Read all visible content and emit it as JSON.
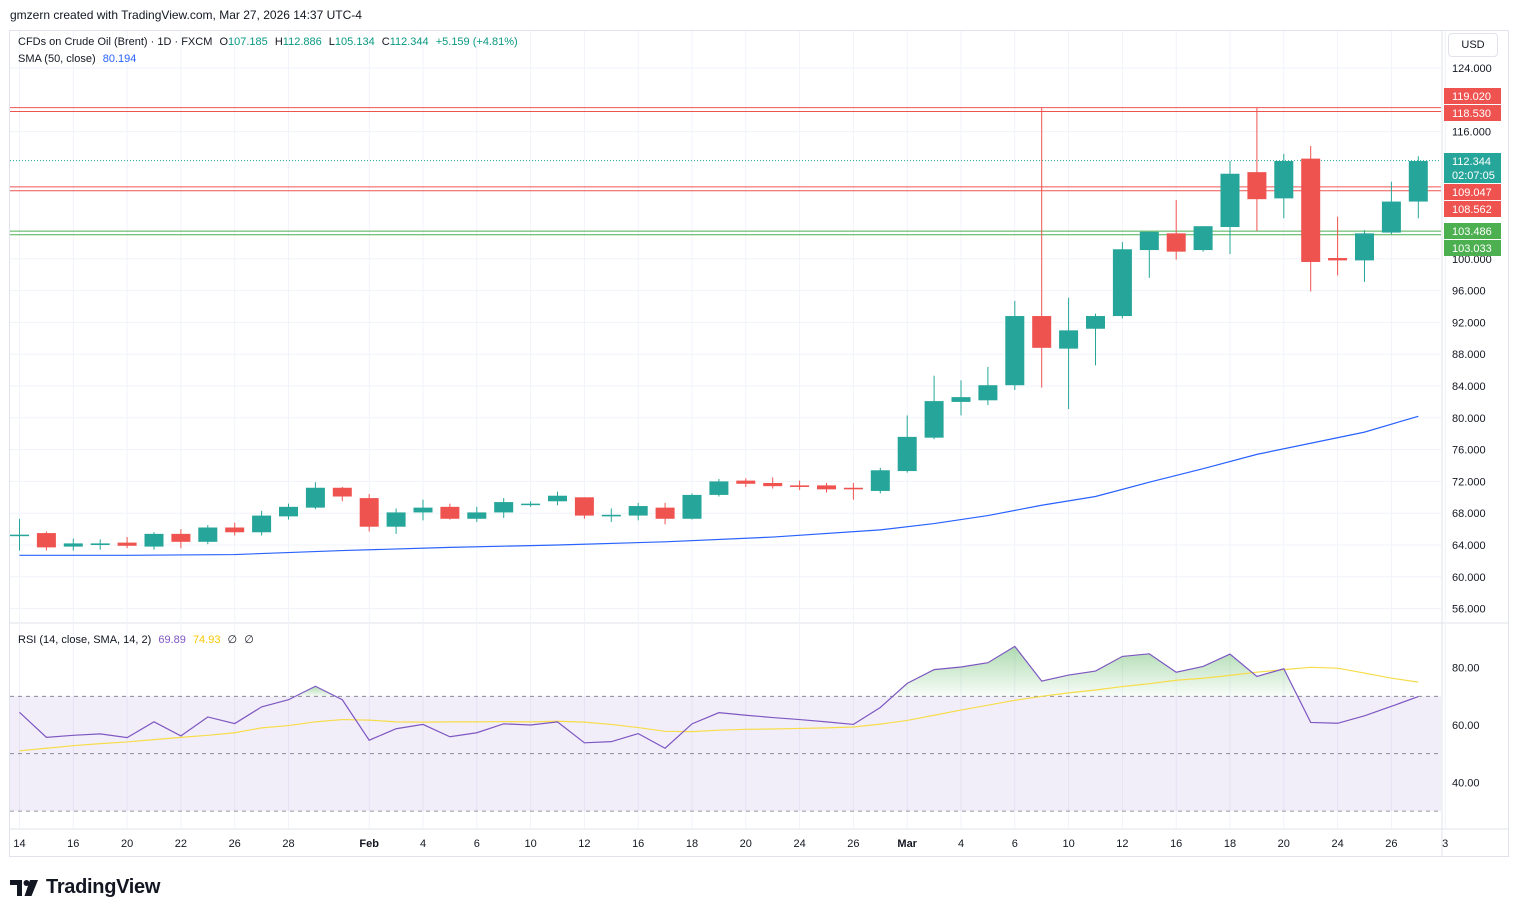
{
  "header": {
    "attribution": "gmzern created with TradingView.com, Mar 27, 2026 14:37 UTC-4"
  },
  "legend": {
    "symbol": "CFDs on Crude Oil (Brent) · 1D · FXCM",
    "o_label": "O",
    "o_value": "107.185",
    "h_label": "H",
    "h_value": "112.886",
    "l_label": "L",
    "l_value": "105.134",
    "c_label": "C",
    "c_value": "112.344",
    "change": "+5.159 (+4.81%)",
    "sma_label": "SMA (50, close)",
    "sma_value": "80.194",
    "rsi_label": "RSI (14, close, SMA, 14, 2)",
    "rsi_value": "69.89",
    "rsi_sma_value": "74.93",
    "rsi_extra1": "∅",
    "rsi_extra2": "∅"
  },
  "currency": "USD",
  "branding": "TradingView",
  "colors": {
    "up": "#26a69a",
    "down": "#ef5350",
    "sma": "#2962ff",
    "rsi": "#7e57c2",
    "rsi_sma": "#f7dc4a",
    "resistance": "#ef5350",
    "support": "#4caf50"
  },
  "chart_data": {
    "type": "candlestick",
    "y_ticks": [
      "124.000",
      "116.000",
      "100.000",
      "96.000",
      "92.000",
      "88.000",
      "84.000",
      "80.000",
      "76.000",
      "72.000",
      "68.000",
      "64.000",
      "60.000",
      "56.000"
    ],
    "x_ticks": [
      {
        "i": 0,
        "label": "14"
      },
      {
        "i": 2,
        "label": "16"
      },
      {
        "i": 4,
        "label": "20"
      },
      {
        "i": 6,
        "label": "22"
      },
      {
        "i": 8,
        "label": "26"
      },
      {
        "i": 10,
        "label": "28"
      },
      {
        "i": 13,
        "label": "Feb",
        "bold": true
      },
      {
        "i": 15,
        "label": "4"
      },
      {
        "i": 17,
        "label": "6"
      },
      {
        "i": 19,
        "label": "10"
      },
      {
        "i": 21,
        "label": "12"
      },
      {
        "i": 23,
        "label": "16"
      },
      {
        "i": 25,
        "label": "18"
      },
      {
        "i": 27,
        "label": "20"
      },
      {
        "i": 29,
        "label": "24"
      },
      {
        "i": 31,
        "label": "26"
      },
      {
        "i": 33,
        "label": "Mar",
        "bold": true
      },
      {
        "i": 35,
        "label": "4"
      },
      {
        "i": 37,
        "label": "6"
      },
      {
        "i": 39,
        "label": "10"
      },
      {
        "i": 41,
        "label": "12"
      },
      {
        "i": 43,
        "label": "16"
      },
      {
        "i": 45,
        "label": "18"
      },
      {
        "i": 47,
        "label": "20"
      },
      {
        "i": 49,
        "label": "24"
      },
      {
        "i": 51,
        "label": "26"
      },
      {
        "i": 53,
        "label": "3"
      }
    ],
    "candles": [
      [
        65.3,
        67.3,
        63.3,
        65.3
      ],
      [
        65.5,
        65.7,
        63.3,
        63.7
      ],
      [
        63.8,
        64.8,
        63.3,
        64.2
      ],
      [
        64.0,
        64.7,
        63.4,
        64.2
      ],
      [
        64.3,
        65.0,
        63.6,
        63.9
      ],
      [
        63.8,
        65.6,
        63.4,
        65.4
      ],
      [
        65.4,
        66.0,
        63.6,
        64.4
      ],
      [
        64.4,
        66.5,
        64.1,
        66.2
      ],
      [
        66.2,
        66.8,
        65.2,
        65.6
      ],
      [
        65.6,
        68.3,
        65.2,
        67.7
      ],
      [
        67.6,
        69.2,
        67.2,
        68.8
      ],
      [
        68.7,
        71.9,
        68.5,
        71.2
      ],
      [
        71.2,
        71.3,
        69.5,
        70.1
      ],
      [
        69.9,
        70.4,
        65.7,
        66.3
      ],
      [
        66.3,
        68.6,
        65.4,
        68.1
      ],
      [
        68.1,
        69.7,
        67.1,
        68.7
      ],
      [
        68.8,
        69.2,
        67.2,
        67.3
      ],
      [
        67.3,
        68.8,
        66.9,
        68.1
      ],
      [
        68.1,
        69.9,
        67.4,
        69.4
      ],
      [
        69.2,
        69.5,
        68.8,
        69.2
      ],
      [
        69.5,
        70.7,
        69.0,
        70.2
      ],
      [
        70.0,
        70.0,
        67.3,
        67.7
      ],
      [
        67.6,
        68.6,
        66.9,
        67.8
      ],
      [
        67.7,
        69.3,
        67.1,
        68.9
      ],
      [
        68.7,
        69.3,
        66.6,
        67.3
      ],
      [
        67.3,
        70.5,
        67.2,
        70.3
      ],
      [
        70.3,
        72.3,
        70.1,
        72.0
      ],
      [
        72.1,
        72.4,
        71.3,
        71.7
      ],
      [
        71.8,
        72.5,
        71.1,
        71.4
      ],
      [
        71.5,
        72.1,
        70.9,
        71.3
      ],
      [
        71.5,
        71.8,
        70.6,
        71.0
      ],
      [
        71.2,
        71.8,
        69.7,
        71.0
      ],
      [
        70.8,
        73.7,
        70.5,
        73.4
      ],
      [
        73.3,
        80.3,
        73.1,
        77.6
      ],
      [
        77.5,
        85.3,
        77.3,
        82.1
      ],
      [
        82.0,
        84.7,
        80.3,
        82.6
      ],
      [
        82.2,
        86.4,
        81.6,
        84.1
      ],
      [
        84.1,
        94.7,
        83.5,
        92.8
      ],
      [
        92.8,
        119.0,
        83.8,
        88.8
      ],
      [
        88.7,
        95.1,
        81.1,
        91.0
      ],
      [
        91.2,
        93.1,
        86.6,
        92.8
      ],
      [
        92.8,
        102.1,
        92.5,
        101.2
      ],
      [
        101.1,
        103.4,
        97.6,
        103.4
      ],
      [
        103.2,
        107.4,
        99.9,
        100.9
      ],
      [
        101.1,
        104.1,
        100.9,
        104.1
      ],
      [
        104.0,
        112.3,
        100.6,
        110.7
      ],
      [
        110.9,
        119.0,
        103.5,
        107.5
      ],
      [
        107.6,
        113.2,
        105.1,
        112.3
      ],
      [
        112.6,
        114.2,
        95.9,
        99.6
      ],
      [
        100.1,
        105.3,
        97.9,
        99.8
      ],
      [
        99.8,
        103.6,
        97.1,
        103.2
      ],
      [
        103.3,
        109.7,
        103.1,
        107.2
      ],
      [
        107.2,
        112.9,
        105.1,
        112.3
      ]
    ],
    "sma50": [
      [
        0,
        62.7
      ],
      [
        4,
        62.7
      ],
      [
        8,
        62.8
      ],
      [
        12,
        63.3
      ],
      [
        16,
        63.7
      ],
      [
        20,
        64.0
      ],
      [
        24,
        64.4
      ],
      [
        28,
        65.0
      ],
      [
        32,
        65.9
      ],
      [
        34,
        66.7
      ],
      [
        36,
        67.7
      ],
      [
        38,
        69.0
      ],
      [
        40,
        70.1
      ],
      [
        42,
        71.9
      ],
      [
        44,
        73.6
      ],
      [
        46,
        75.4
      ],
      [
        48,
        76.8
      ],
      [
        50,
        78.2
      ],
      [
        52,
        80.19
      ]
    ],
    "resistance_lines": [
      119.02,
      118.53,
      109.047,
      108.562
    ],
    "support_lines": [
      103.486,
      103.033
    ],
    "last_price": 112.344,
    "price_labels": [
      {
        "value": "119.020",
        "type": "resistance"
      },
      {
        "value": "118.530",
        "type": "resistance"
      },
      {
        "value": "112.344",
        "type": "last"
      },
      {
        "value": "02:07:05",
        "type": "last"
      },
      {
        "value": "109.047",
        "type": "resistance"
      },
      {
        "value": "108.562",
        "type": "resistance"
      },
      {
        "value": "103.486",
        "type": "support"
      },
      {
        "value": "103.033",
        "type": "support"
      }
    ],
    "rsi": {
      "y_ticks": [
        "80.00",
        "60.00",
        "40.00"
      ],
      "upper": 70,
      "middle": 50,
      "lower": 30,
      "values": [
        64.4,
        55.7,
        56.4,
        56.9,
        55.6,
        61.1,
        56.2,
        62.8,
        60.5,
        66.3,
        68.8,
        73.5,
        68.8,
        54.7,
        58.7,
        60.2,
        55.9,
        57.3,
        60.4,
        60.0,
        61.1,
        53.8,
        54.2,
        57.0,
        51.9,
        60.4,
        64.3,
        63.4,
        62.6,
        61.9,
        61.1,
        60.2,
        66.1,
        74.5,
        79.3,
        80.2,
        81.7,
        87.4,
        75.3,
        77.4,
        78.8,
        83.9,
        84.8,
        78.4,
        80.4,
        84.7,
        76.9,
        79.6,
        60.9,
        60.6,
        63.2,
        66.5,
        69.89
      ],
      "sma": [
        51.0,
        51.9,
        52.8,
        53.5,
        54.1,
        54.9,
        55.7,
        56.4,
        57.3,
        59.0,
        59.8,
        61.1,
        61.9,
        61.7,
        61.1,
        61.0,
        61.1,
        61.1,
        61.2,
        61.1,
        61.3,
        61.0,
        60.2,
        59.1,
        57.8,
        57.7,
        58.2,
        58.5,
        58.6,
        58.8,
        59.0,
        59.3,
        60.3,
        61.6,
        63.4,
        65.2,
        66.9,
        68.6,
        70.0,
        71.2,
        72.2,
        73.4,
        74.4,
        75.6,
        76.3,
        77.3,
        78.4,
        79.3,
        80.1,
        79.8,
        78.1,
        76.3,
        74.93
      ]
    }
  }
}
